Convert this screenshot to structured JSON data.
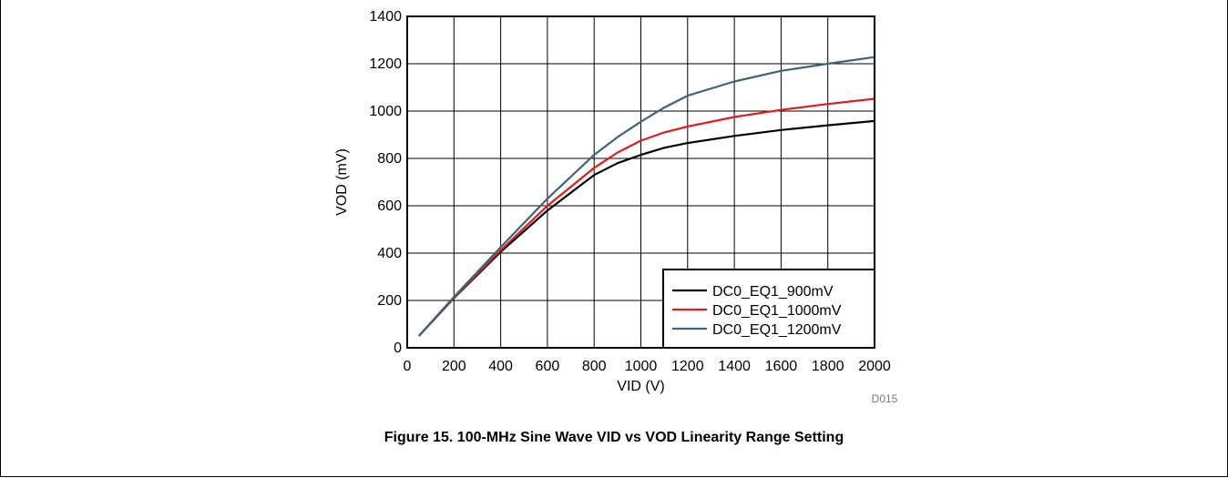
{
  "caption": "Figure 15. 100-MHz Sine Wave VID vs VOD Linearity Range Setting",
  "chart_data": {
    "type": "line",
    "xlabel": "VID (V)",
    "ylabel": "VOD (mV)",
    "xlim": [
      0,
      2000
    ],
    "ylim": [
      0,
      1400
    ],
    "xticks": [
      0,
      200,
      400,
      600,
      800,
      1000,
      1200,
      1400,
      1600,
      1800,
      2000
    ],
    "yticks": [
      0,
      200,
      400,
      600,
      800,
      1000,
      1200,
      1400
    ],
    "grid": true,
    "legend_position": "bottom-right",
    "id_label": "D015",
    "series": [
      {
        "name": "DC0_EQ1_900mV",
        "color": "#000000",
        "x": [
          50,
          200,
          400,
          600,
          800,
          900,
          1000,
          1100,
          1200,
          1400,
          1600,
          1800,
          2000
        ],
        "y": [
          50,
          210,
          405,
          580,
          730,
          780,
          815,
          845,
          865,
          895,
          920,
          940,
          958
        ]
      },
      {
        "name": "DC0_EQ1_1000mV",
        "color": "#e31a1c",
        "x": [
          50,
          200,
          400,
          600,
          800,
          900,
          1000,
          1100,
          1200,
          1400,
          1600,
          1800,
          2000
        ],
        "y": [
          50,
          212,
          412,
          600,
          760,
          825,
          875,
          910,
          935,
          975,
          1005,
          1030,
          1052
        ]
      },
      {
        "name": "DC0_EQ1_1200mV",
        "color": "#3b6478",
        "x": [
          50,
          200,
          400,
          600,
          800,
          900,
          1000,
          1100,
          1200,
          1400,
          1600,
          1800,
          2000
        ],
        "y": [
          50,
          215,
          425,
          630,
          815,
          890,
          955,
          1015,
          1065,
          1125,
          1170,
          1200,
          1228
        ]
      }
    ]
  }
}
